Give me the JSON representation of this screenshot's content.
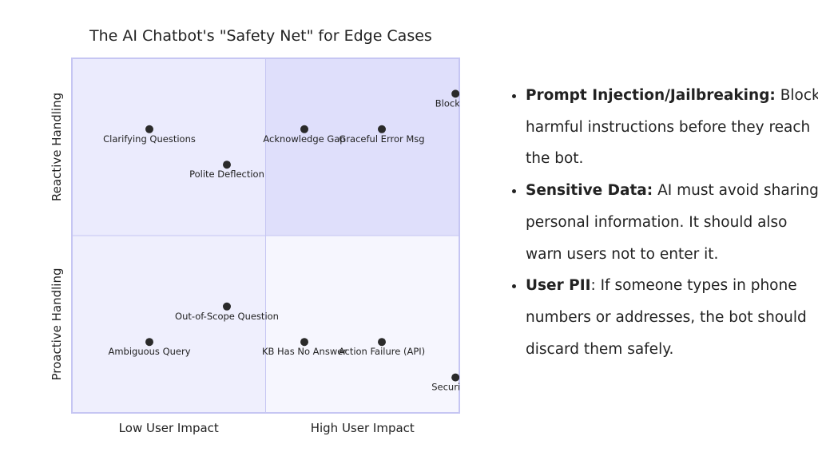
{
  "chart_data": {
    "type": "scatter",
    "subtype": "quadrant",
    "title": "The AI Chatbot's \"Safety Net\" for Edge Cases",
    "x_axis": {
      "low_label": "Low User Impact",
      "high_label": "High User Impact",
      "range": [
        0,
        1
      ]
    },
    "y_axis": {
      "low_label": "Proactive Handling",
      "high_label": "Reactive Handling",
      "range": [
        0,
        1
      ]
    },
    "quadrant_colors": {
      "top_left": "#ebebfd",
      "top_right": "#dfdffb",
      "bottom_left": "#efeffd",
      "bottom_right": "#f6f6fe"
    },
    "border_color": "#c6c6f3",
    "point_color": "#2a2a2a",
    "points": [
      {
        "label": "Clarifying Questions",
        "x": 0.2,
        "y": 0.8
      },
      {
        "label": "Polite Deflection",
        "x": 0.4,
        "y": 0.7
      },
      {
        "label": "Acknowledge Gap",
        "x": 0.6,
        "y": 0.8
      },
      {
        "label": "Graceful Error Msg",
        "x": 0.8,
        "y": 0.8
      },
      {
        "label": "Block & I",
        "x": 0.99,
        "y": 0.9
      },
      {
        "label": "Out-of-Scope Question",
        "x": 0.4,
        "y": 0.3
      },
      {
        "label": "Ambiguous Query",
        "x": 0.2,
        "y": 0.2
      },
      {
        "label": "KB Has No Answer",
        "x": 0.6,
        "y": 0.2
      },
      {
        "label": "Action Failure (API)",
        "x": 0.8,
        "y": 0.2
      },
      {
        "label": "Security &",
        "x": 0.99,
        "y": 0.1
      }
    ]
  },
  "bullets": [
    {
      "bold": "Prompt Injection/Jailbreaking:",
      "text": " Block harmful instructions before they reach the bot."
    },
    {
      "bold": "Sensitive Data:",
      "text": " AI must avoid sharing personal information. It should also warn users not to enter it."
    },
    {
      "bold": "User PII",
      "text": ": If someone types in phone numbers or addresses, the bot should discard them safely."
    }
  ]
}
